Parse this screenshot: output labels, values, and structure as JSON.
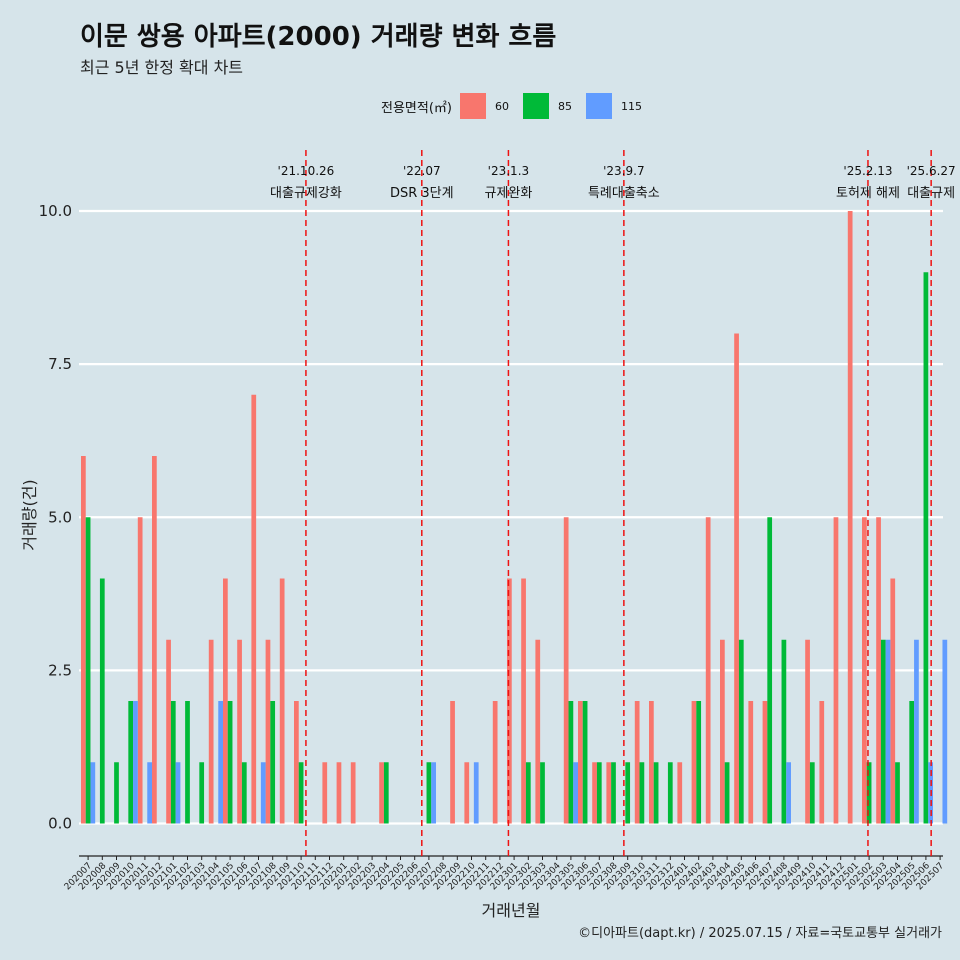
{
  "title": "이문 쌍용 아파트(2000) 거래량 변화 흐름",
  "subtitle": "최근 5년 한정 확대 차트",
  "caption": "©디아파트(dapt.kr) / 2025.07.15 / 자료=국토교통부 실거래가",
  "legend": {
    "title": "전용면적(㎡)",
    "items": [
      {
        "label": "60",
        "color": "#f8766d"
      },
      {
        "label": "85",
        "color": "#00ba38"
      },
      {
        "label": "115",
        "color": "#619cff"
      }
    ]
  },
  "chart_data": {
    "type": "bar",
    "title": "이문 쌍용 아파트(2000) 거래량 변화 흐름",
    "subtitle": "최근 5년 한정 확대 차트",
    "xlabel": "거래년월",
    "ylabel": "거래량(건)",
    "ylim": [
      -0.45,
      10.35
    ],
    "yticks": [
      0.0,
      2.5,
      5.0,
      7.5,
      10.0
    ],
    "ytick_labels": [
      "0.0",
      "2.5",
      "5.0",
      "7.5",
      "10.0"
    ],
    "grid": "horizontal",
    "legend_position": "top",
    "categories": [
      "202007",
      "202008",
      "202009",
      "202010",
      "202011",
      "202012",
      "202101",
      "202102",
      "202103",
      "202104",
      "202105",
      "202106",
      "202107",
      "202108",
      "202109",
      "202110",
      "202111",
      "202112",
      "202201",
      "202202",
      "202203",
      "202204",
      "202205",
      "202206",
      "202207",
      "202208",
      "202209",
      "202210",
      "202211",
      "202212",
      "202301",
      "202302",
      "202303",
      "202304",
      "202305",
      "202306",
      "202307",
      "202308",
      "202309",
      "202310",
      "202311",
      "202312",
      "202401",
      "202402",
      "202403",
      "202404",
      "202405",
      "202406",
      "202407",
      "202408",
      "202409",
      "202410",
      "202411",
      "202412",
      "202501",
      "202502",
      "202503",
      "202504",
      "202505",
      "202506",
      "202507"
    ],
    "series": [
      {
        "name": "60",
        "color": "#f8766d",
        "values": [
          6,
          0,
          0,
          0,
          5,
          6,
          3,
          0,
          0,
          3,
          4,
          3,
          7,
          3,
          4,
          2,
          0,
          1,
          1,
          1,
          0,
          1,
          0,
          0,
          0,
          0,
          2,
          1,
          0,
          2,
          4,
          4,
          3,
          0,
          5,
          2,
          1,
          1,
          0,
          2,
          2,
          0,
          1,
          2,
          5,
          3,
          8,
          2,
          2,
          0,
          0,
          3,
          2,
          5,
          10,
          5,
          5,
          4,
          0,
          0,
          0
        ]
      },
      {
        "name": "85",
        "color": "#00ba38",
        "values": [
          5,
          4,
          1,
          2,
          0,
          0,
          2,
          2,
          1,
          0,
          2,
          1,
          0,
          2,
          0,
          1,
          0,
          0,
          0,
          0,
          0,
          1,
          0,
          0,
          1,
          0,
          0,
          0,
          0,
          0,
          0,
          1,
          1,
          0,
          2,
          2,
          1,
          1,
          1,
          1,
          1,
          1,
          0,
          2,
          0,
          1,
          3,
          0,
          5,
          3,
          0,
          1,
          0,
          0,
          0,
          1,
          3,
          1,
          2,
          9,
          0
        ]
      },
      {
        "name": "115",
        "color": "#619cff",
        "values": [
          1,
          0,
          0,
          2,
          1,
          0,
          1,
          0,
          0,
          2,
          0,
          0,
          1,
          0,
          0,
          0,
          0,
          0,
          0,
          0,
          0,
          0,
          0,
          0,
          1,
          0,
          0,
          1,
          0,
          0,
          0,
          0,
          0,
          0,
          1,
          0,
          0,
          0,
          0,
          0,
          0,
          0,
          0,
          0,
          0,
          0,
          0,
          0,
          0,
          1,
          0,
          0,
          0,
          0,
          0,
          0,
          3,
          0,
          3,
          1,
          3
        ]
      }
    ],
    "annotations": [
      {
        "date": "'21.10.26",
        "label": "대출규제강화",
        "month": "202110",
        "frac": 0.84
      },
      {
        "date": "'22.07",
        "label": "DSR 3단계",
        "month": "202207",
        "frac": 0.0
      },
      {
        "date": "'23.1.3",
        "label": "규제완화",
        "month": "202301",
        "frac": 0.1
      },
      {
        "date": "'23.9.7",
        "label": "특례대출축소",
        "month": "202309",
        "frac": 0.23
      },
      {
        "date": "'25.2.13",
        "label": "토허제 해제",
        "month": "202502",
        "frac": 0.42
      },
      {
        "date": "'25.6.27",
        "label": "대출규제",
        "month": "202506",
        "frac": 0.87
      }
    ]
  }
}
